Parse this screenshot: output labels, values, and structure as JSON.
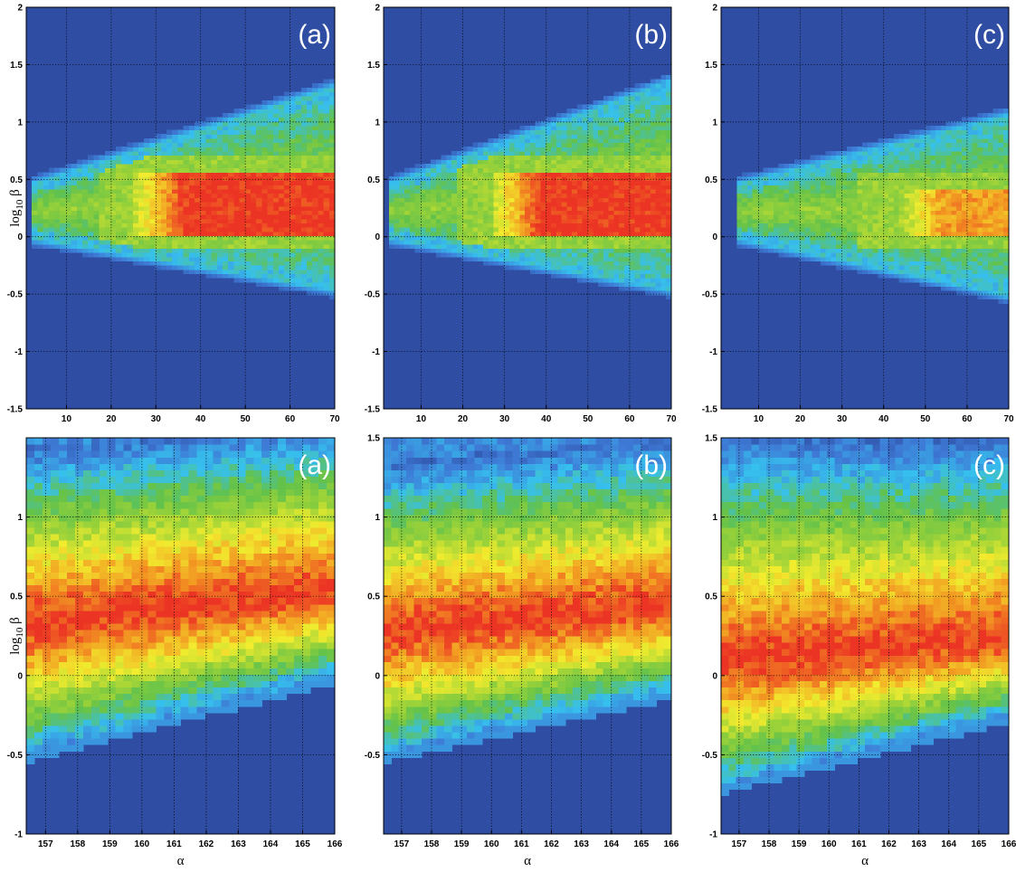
{
  "colormap": {
    "stops": [
      "#2f4ea3",
      "#3e7ad6",
      "#36c0ee",
      "#63c24a",
      "#9ed338",
      "#f2ec2e",
      "#f29a22",
      "#ec3424"
    ]
  },
  "chart_data": [
    {
      "type": "heatmap",
      "row": "top",
      "panel_label": "(a)",
      "xlim": [
        1,
        70
      ],
      "ylim": [
        -1.5,
        2
      ],
      "xticks": [
        10,
        20,
        30,
        40,
        50,
        60,
        70
      ],
      "yticks": [
        -1.5,
        -1,
        -0.5,
        0,
        0.5,
        1,
        1.5,
        2
      ],
      "xlabel": "",
      "ylabel": "log10 β",
      "grid": true,
      "band": {
        "tip_x": 2.5,
        "upper": [
          [
            2.5,
            0.45
          ],
          [
            70,
            1.3
          ]
        ],
        "lower": [
          [
            2.5,
            0.0
          ],
          [
            70,
            -0.45
          ]
        ],
        "hot_region": {
          "x_start": 25,
          "y_range": [
            0.0,
            0.55
          ],
          "intensity": 1.0
        }
      },
      "cells_x": 55,
      "cells_y": 95
    },
    {
      "type": "heatmap",
      "row": "top",
      "panel_label": "(b)",
      "xlim": [
        1,
        70
      ],
      "ylim": [
        -1.5,
        2
      ],
      "xticks": [
        10,
        20,
        30,
        40,
        50,
        60,
        70
      ],
      "yticks": [
        -1.5,
        -1,
        -0.5,
        0,
        0.5,
        1,
        1.5,
        2
      ],
      "xlabel": "",
      "ylabel": "",
      "grid": true,
      "band": {
        "tip_x": 2.5,
        "upper": [
          [
            2.5,
            0.45
          ],
          [
            70,
            1.35
          ]
        ],
        "lower": [
          [
            2.5,
            0.0
          ],
          [
            70,
            -0.45
          ]
        ],
        "hot_region": {
          "x_start": 27,
          "y_range": [
            0.0,
            0.55
          ],
          "intensity": 1.0
        }
      },
      "cells_x": 55,
      "cells_y": 95
    },
    {
      "type": "heatmap",
      "row": "top",
      "panel_label": "(c)",
      "xlim": [
        1,
        70
      ],
      "ylim": [
        -1.5,
        2
      ],
      "xticks": [
        10,
        20,
        30,
        40,
        50,
        60,
        70
      ],
      "yticks": [
        -1.5,
        -1,
        -0.5,
        0,
        0.5,
        1,
        1.5,
        2
      ],
      "xlabel": "",
      "ylabel": "",
      "grid": true,
      "band": {
        "tip_x": 5,
        "upper": [
          [
            5,
            0.45
          ],
          [
            70,
            1.05
          ]
        ],
        "lower": [
          [
            5,
            0.0
          ],
          [
            70,
            -0.5
          ]
        ],
        "hot_region": {
          "x_start": 42,
          "y_range": [
            0.0,
            0.4
          ],
          "intensity": 0.85
        }
      },
      "cells_x": 55,
      "cells_y": 95
    },
    {
      "type": "heatmap",
      "row": "bottom",
      "panel_label": "(a)",
      "xlim": [
        156.4,
        166
      ],
      "ylim": [
        -1,
        1.5
      ],
      "xticks": [
        157,
        158,
        159,
        160,
        161,
        162,
        163,
        164,
        165,
        166
      ],
      "yticks": [
        -1,
        -0.5,
        0,
        0.5,
        1
      ],
      "xlabel": "α",
      "ylabel": "log10 β",
      "grid": true,
      "band": {
        "upper": [
          [
            156.4,
            1.45
          ],
          [
            166,
            1.6
          ]
        ],
        "lower": [
          [
            156.4,
            -0.5
          ],
          [
            166,
            0.0
          ]
        ],
        "peak": [
          [
            156.4,
            0.35
          ],
          [
            166,
            0.55
          ]
        ],
        "hot_width": 0.28
      },
      "cells_x": 38,
      "cells_y": 62
    },
    {
      "type": "heatmap",
      "row": "bottom",
      "panel_label": "(b)",
      "xlim": [
        156.4,
        166
      ],
      "ylim": [
        -1,
        1.5
      ],
      "xticks": [
        157,
        158,
        159,
        160,
        161,
        162,
        163,
        164,
        165,
        166
      ],
      "yticks": [
        -0.5,
        0,
        0.5,
        1,
        1.5
      ],
      "xlabel": "α",
      "ylabel": "",
      "grid": true,
      "band": {
        "upper": [
          [
            156.4,
            1.35
          ],
          [
            166,
            1.5
          ]
        ],
        "lower": [
          [
            156.4,
            -0.5
          ],
          [
            166,
            -0.1
          ]
        ],
        "peak": [
          [
            156.4,
            0.3
          ],
          [
            166,
            0.45
          ]
        ],
        "hot_width": 0.26
      },
      "cells_x": 38,
      "cells_y": 62
    },
    {
      "type": "heatmap",
      "row": "bottom",
      "panel_label": "(c)",
      "xlim": [
        156.4,
        166
      ],
      "ylim": [
        -1,
        1.5
      ],
      "xticks": [
        157,
        158,
        159,
        160,
        161,
        162,
        163,
        164,
        165,
        166
      ],
      "yticks": [
        -1,
        -0.5,
        0,
        0.5,
        1,
        1.5
      ],
      "xlabel": "α",
      "ylabel": "",
      "grid": true,
      "band": {
        "upper": [
          [
            156.4,
            1.5
          ],
          [
            166,
            1.5
          ]
        ],
        "lower": [
          [
            156.4,
            -0.7
          ],
          [
            166,
            -0.25
          ]
        ],
        "peak": [
          [
            156.4,
            0.1
          ],
          [
            166,
            0.25
          ]
        ],
        "hot_width": 0.25
      },
      "cells_x": 38,
      "cells_y": 62
    }
  ]
}
